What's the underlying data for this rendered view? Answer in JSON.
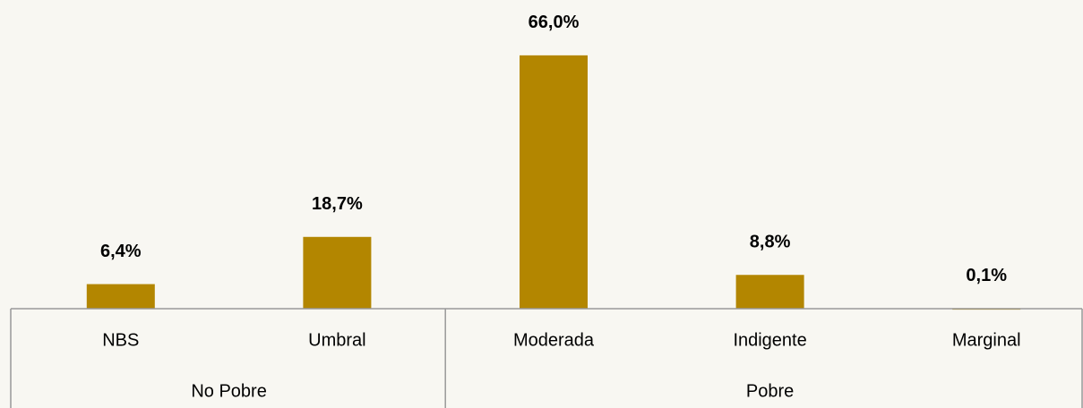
{
  "chart_data": {
    "type": "bar",
    "categories": [
      "NBS",
      "Umbral",
      "Moderada",
      "Indigente",
      "Marginal"
    ],
    "values": [
      6.4,
      18.7,
      66.0,
      8.8,
      0.1
    ],
    "value_labels": [
      "6,4%",
      "18,7%",
      "66,0%",
      "8,8%",
      "0,1%"
    ],
    "groups": [
      {
        "name": "No Pobre",
        "members": [
          "NBS",
          "Umbral"
        ]
      },
      {
        "name": "Pobre",
        "members": [
          "Moderada",
          "Indigente",
          "Marginal"
        ]
      }
    ],
    "color": "#b38600"
  }
}
